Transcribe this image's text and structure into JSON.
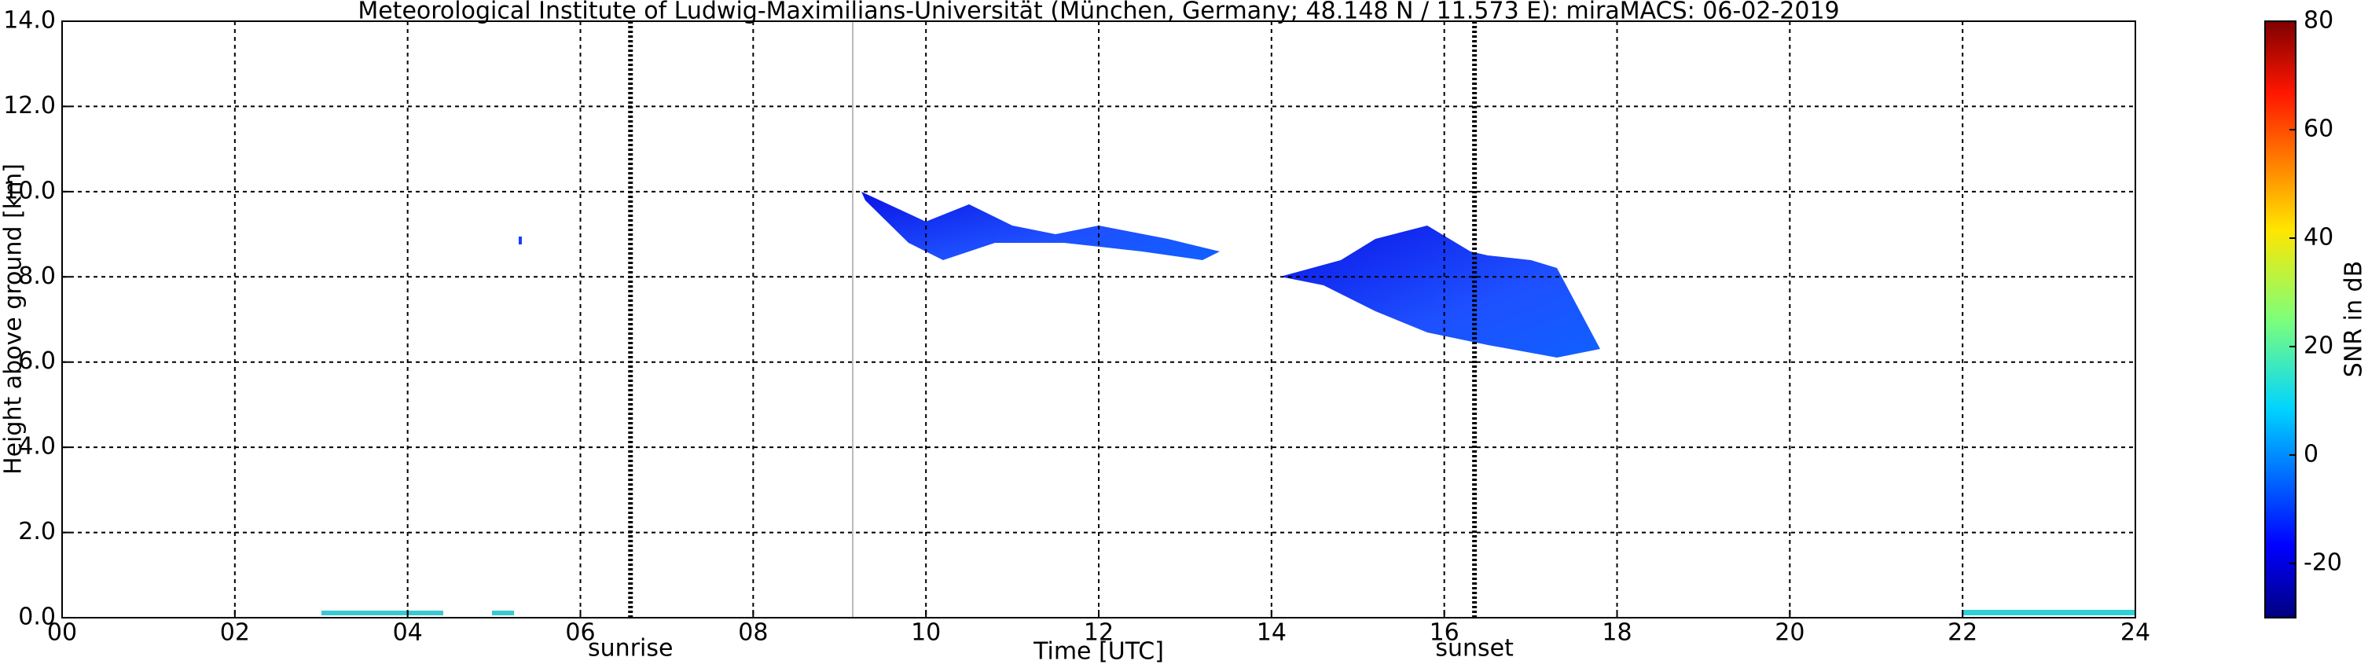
{
  "chart_data": {
    "type": "heatmap",
    "title": "Meteorological Institute of Ludwig-Maximilians-Universität (München, Germany; 48.148 N / 11.573 E):    miraMACS: 06-02-2019",
    "xlabel": "Time [UTC]",
    "ylabel": "Height above ground [km]",
    "xlim": [
      0,
      24
    ],
    "xticks": [
      {
        "value": 0,
        "label": "00"
      },
      {
        "value": 2,
        "label": "02"
      },
      {
        "value": 4,
        "label": "04"
      },
      {
        "value": 6,
        "label": "06"
      },
      {
        "value": 8,
        "label": "08"
      },
      {
        "value": 10,
        "label": "10"
      },
      {
        "value": 12,
        "label": "12"
      },
      {
        "value": 14,
        "label": "14"
      },
      {
        "value": 16,
        "label": "16"
      },
      {
        "value": 18,
        "label": "18"
      },
      {
        "value": 20,
        "label": "20"
      },
      {
        "value": 22,
        "label": "22"
      },
      {
        "value": 24,
        "label": "24"
      }
    ],
    "ylim": [
      0,
      14
    ],
    "yticks": [
      {
        "value": 0,
        "label": "0.0"
      },
      {
        "value": 2,
        "label": "2.0"
      },
      {
        "value": 4,
        "label": "4.0"
      },
      {
        "value": 6,
        "label": "6.0"
      },
      {
        "value": 8,
        "label": "8.0"
      },
      {
        "value": 10,
        "label": "10.0"
      },
      {
        "value": 12,
        "label": "12.0"
      },
      {
        "value": 14,
        "label": "14.0"
      }
    ],
    "grid": true,
    "annotations": [
      {
        "label": "sunrise",
        "x": 6.58
      },
      {
        "label": "sunset",
        "x": 16.35
      }
    ],
    "colorbar": {
      "label": "SNR in dB",
      "lim": [
        -30,
        80
      ],
      "ticks": [
        -20,
        0,
        20,
        40,
        60,
        80
      ]
    }
  }
}
